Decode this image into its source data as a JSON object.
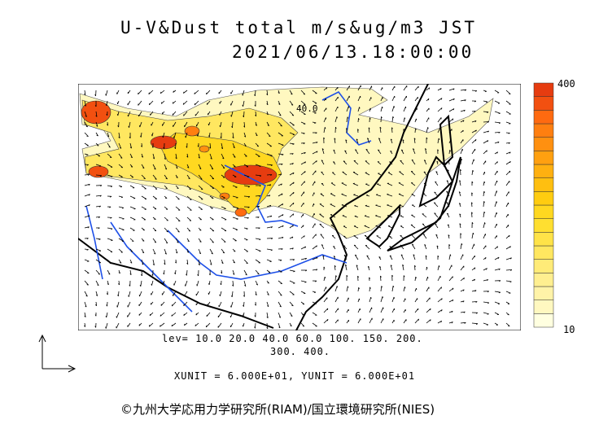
{
  "title_line1": "U-V&Dust total m/s&ug/m3 JST",
  "title_line2": "2021/06/13.18:00:00",
  "colorbar": {
    "max_label": "400",
    "min_label": "10",
    "colors": [
      "#ffffe0",
      "#fff8c0",
      "#fff3a8",
      "#ffef90",
      "#ffeb78",
      "#ffe760",
      "#ffe348",
      "#ffdf30",
      "#ffd820",
      "#ffcc10",
      "#ffbf10",
      "#ffb010",
      "#ffa010",
      "#ff9010",
      "#ff7f10",
      "#ff6a10",
      "#f25010",
      "#e63c10"
    ]
  },
  "contour_label": "40.0",
  "levels_line1": "lev= 10.0 20.0 40.0 60.0 100. 150. 200.",
  "levels_line2": "300. 400.",
  "unit_text": "XUNIT = 6.000E+01, YUNIT = 6.000E+01",
  "copyright": "©九州大学応用力学研究所(RIAM)/国立環境研究所(NIES)"
}
